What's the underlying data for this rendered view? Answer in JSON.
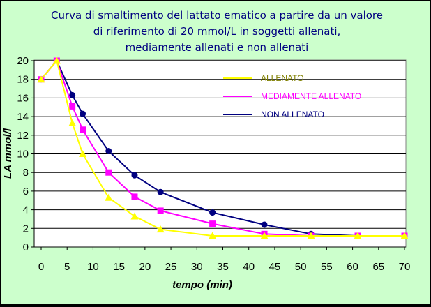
{
  "chart_data": {
    "type": "line",
    "title": [
      "Curva di smaltimento del lattato ematico a partire da un valore",
      "di riferimento di 20 mmol/L in soggetti allenati,",
      "mediamente allenati e non allenati"
    ],
    "xlabel": "tempo (min)",
    "ylabel": "LA mmol/l",
    "xlim": [
      0,
      70
    ],
    "ylim": [
      0,
      20
    ],
    "x_ticks": [
      0,
      5,
      10,
      15,
      20,
      25,
      30,
      35,
      40,
      45,
      50,
      55,
      60,
      65,
      70
    ],
    "y_ticks": [
      0,
      2,
      4,
      6,
      8,
      10,
      12,
      14,
      16,
      18,
      20
    ],
    "grid": "horizontal",
    "legend_position": "top-right",
    "series": [
      {
        "name": "ALLENATO",
        "color": "#ffff00",
        "label_color": "#808000",
        "marker": "triangle",
        "x": [
          0,
          3,
          6,
          8,
          13,
          18,
          23,
          33,
          43,
          52,
          61,
          70
        ],
        "y": [
          18,
          20,
          13.3,
          10,
          5.3,
          3.3,
          1.9,
          1.2,
          1.2,
          1.2,
          1.2,
          1.2
        ]
      },
      {
        "name": "MEDIAMENTE ALLENATO",
        "color": "#ff00ff",
        "label_color": "#ff00ff",
        "marker": "square",
        "x": [
          0,
          3,
          6,
          8,
          13,
          18,
          23,
          33,
          43,
          52,
          61,
          70
        ],
        "y": [
          18,
          20,
          15.1,
          12.6,
          8,
          5.4,
          3.9,
          2.5,
          1.4,
          1.2,
          1.2,
          1.2
        ]
      },
      {
        "name": "NON ALLENATO",
        "color": "#000080",
        "label_color": "#000080",
        "marker": "circle",
        "x": [
          0,
          3,
          6,
          8,
          13,
          18,
          23,
          33,
          43,
          52,
          61,
          70
        ],
        "y": [
          18,
          20,
          16.3,
          14.3,
          10.3,
          7.7,
          5.9,
          3.7,
          2.4,
          1.4,
          1.2,
          1.2
        ]
      }
    ]
  }
}
